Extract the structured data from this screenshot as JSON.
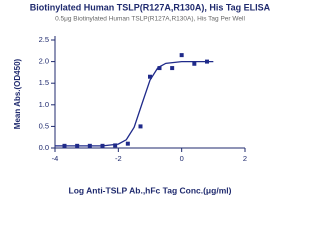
{
  "chart_data": {
    "type": "scatter",
    "title": "Biotinylated Human TSLP(R127A,R130A), His Tag ELISA",
    "subtitle": "0.5μg Biotinylated Human TSLP(R127A,R130A), His Tag Per Well",
    "x_label": "Log Anti-TSLP Ab.,hFc Tag Conc.(μg/ml)",
    "y_label": "Mean Abs.(OD450)",
    "xlim": [
      -4,
      2
    ],
    "xticks": [
      -4,
      -2,
      0,
      2
    ],
    "ylim": [
      0,
      2.5
    ],
    "yticks": [
      {
        "value": 0,
        "label": "0.0"
      },
      0.5,
      {
        "value": 1,
        "label": "1.0"
      },
      1.5,
      {
        "value": 2,
        "label": "2.0"
      },
      2.5
    ],
    "grid": false,
    "series": [
      {
        "color": "#1f2a8a",
        "mode": "markers",
        "x": [
          -3.7,
          -3.3,
          -2.9,
          -2.5,
          -2.1,
          -1.7,
          -1.3,
          -1.0,
          -0.7,
          -0.3,
          0.0,
          0.4,
          0.8
        ],
        "values": [
          0.05,
          0.05,
          0.05,
          0.05,
          0.06,
          0.1,
          0.5,
          1.65,
          1.85,
          1.85,
          2.15,
          1.95,
          2.0
        ]
      },
      {
        "color": "#1f2a8a",
        "mode": "line",
        "x": [
          -4,
          -3,
          -2.5,
          -2,
          -1.75,
          -1.5,
          -1.25,
          -1,
          -0.75,
          -0.5,
          0,
          1
        ],
        "values": [
          0.05,
          0.05,
          0.05,
          0.09,
          0.19,
          0.48,
          1.03,
          1.57,
          1.86,
          1.96,
          2.0,
          2.0
        ]
      }
    ]
  }
}
